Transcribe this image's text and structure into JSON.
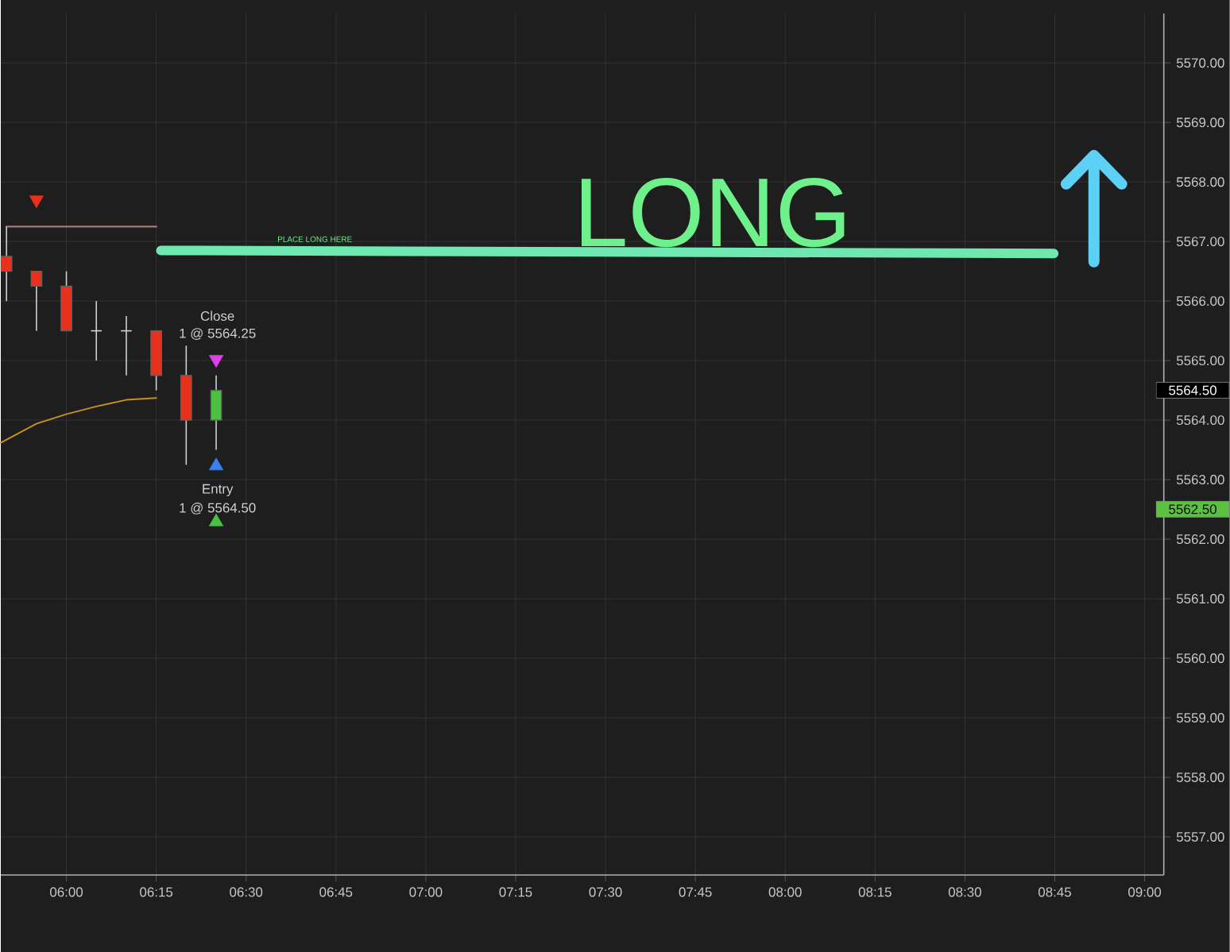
{
  "chart_data": {
    "type": "candlestick",
    "x": [
      5.8333,
      5.9167,
      6,
      6.0833,
      6.1667,
      6.25,
      6.3333,
      6.4167
    ],
    "ohlc": [
      [
        5566.75,
        5567.25,
        5566.0,
        5566.5
      ],
      [
        5566.5,
        5566.5,
        5565.5,
        5566.25
      ],
      [
        5566.25,
        5566.5,
        5565.5,
        5565.5
      ],
      [
        5565.5,
        5566.0,
        5565.0,
        5565.5
      ],
      [
        5565.5,
        5565.75,
        5564.75,
        5565.5
      ],
      [
        5565.5,
        5565.5,
        5564.5,
        5564.75
      ],
      [
        5564.75,
        5565.25,
        5563.25,
        5564.0
      ],
      [
        5564.0,
        5564.75,
        5563.5,
        5564.5
      ]
    ],
    "colors": [
      "#e8301c",
      "#e8301c",
      "#e8301c",
      "#d0d0d0",
      "#d0d0d0",
      "#e8301c",
      "#e8301c",
      "#4cc040"
    ],
    "series": [
      {
        "type": "line",
        "color": "#c8901c",
        "x": [
          5.8175,
          5.9167,
          6,
          6.0833,
          6.1667,
          6.25
        ],
        "values": [
          5563.62,
          5563.94,
          5564.1,
          5564.23,
          5564.34,
          5564.37
        ]
      },
      {
        "type": "line",
        "color": "#a07a7a",
        "x": [
          5.8333,
          6.25
        ],
        "values": [
          5567.25,
          5567.25
        ]
      },
      {
        "type": "line",
        "color": "#6ee8b0",
        "x": [
          6.263,
          8.747
        ],
        "values": [
          5566.85,
          5566.8
        ]
      },
      {
        "type": "scatter",
        "marker": "triangle_down",
        "color": "#e8301c",
        "x": [
          5.9167
        ],
        "values": [
          5567.7
        ]
      },
      {
        "type": "scatter",
        "marker": "triangle_down",
        "color": "#e040e8",
        "x": [
          6.4167
        ],
        "values": [
          5565.02
        ]
      },
      {
        "type": "scatter",
        "marker": "triangle",
        "color": "#3a80f0",
        "x": [
          6.4167
        ],
        "values": [
          5563.23
        ]
      },
      {
        "type": "scatter",
        "marker": "triangle",
        "color": "#4cc040",
        "x": [
          6.4167
        ],
        "values": [
          5562.29
        ]
      }
    ],
    "annotations": [
      "LONG",
      "PLACE LONG HERE",
      "Close",
      "1 @ 5564.25",
      "Entry",
      "1 @ 5564.50",
      "5564.50",
      "5562.50"
    ],
    "xlim": [
      5.8175,
      9.0533
    ],
    "ylim": [
      5556.36,
      5570.83
    ],
    "xticks": [
      {
        "value": 6,
        "label": "06:00"
      },
      {
        "value": 6.25,
        "label": "06:15"
      },
      {
        "value": 6.5,
        "label": "06:30"
      },
      {
        "value": 6.75,
        "label": "06:45"
      },
      {
        "value": 7,
        "label": "07:00"
      },
      {
        "value": 7.25,
        "label": "07:15"
      },
      {
        "value": 7.5,
        "label": "07:30"
      },
      {
        "value": 7.75,
        "label": "07:45"
      },
      {
        "value": 8,
        "label": "08:00"
      },
      {
        "value": 8.25,
        "label": "08:15"
      },
      {
        "value": 8.5,
        "label": "08:30"
      },
      {
        "value": 8.75,
        "label": "08:45"
      },
      {
        "value": 9,
        "label": "09:00"
      }
    ],
    "yticks": [
      {
        "value": 5557,
        "label": "5557.00"
      },
      {
        "value": 5558,
        "label": "5558.00"
      },
      {
        "value": 5559,
        "label": "5559.00"
      },
      {
        "value": 5560,
        "label": "5560.00"
      },
      {
        "value": 5561,
        "label": "5561.00"
      },
      {
        "value": 5562,
        "label": "5562.00"
      },
      {
        "value": 5563,
        "label": "5563.00"
      },
      {
        "value": 5564,
        "label": "5564.00"
      },
      {
        "value": 5565,
        "label": "5565.00"
      },
      {
        "value": 5566,
        "label": "5566.00"
      },
      {
        "value": 5567,
        "label": "5567.00"
      },
      {
        "value": 5568,
        "label": "5568.00"
      },
      {
        "value": 5569,
        "label": "5569.00"
      },
      {
        "value": 5570,
        "label": "5570.00"
      }
    ],
    "grid": true
  }
}
